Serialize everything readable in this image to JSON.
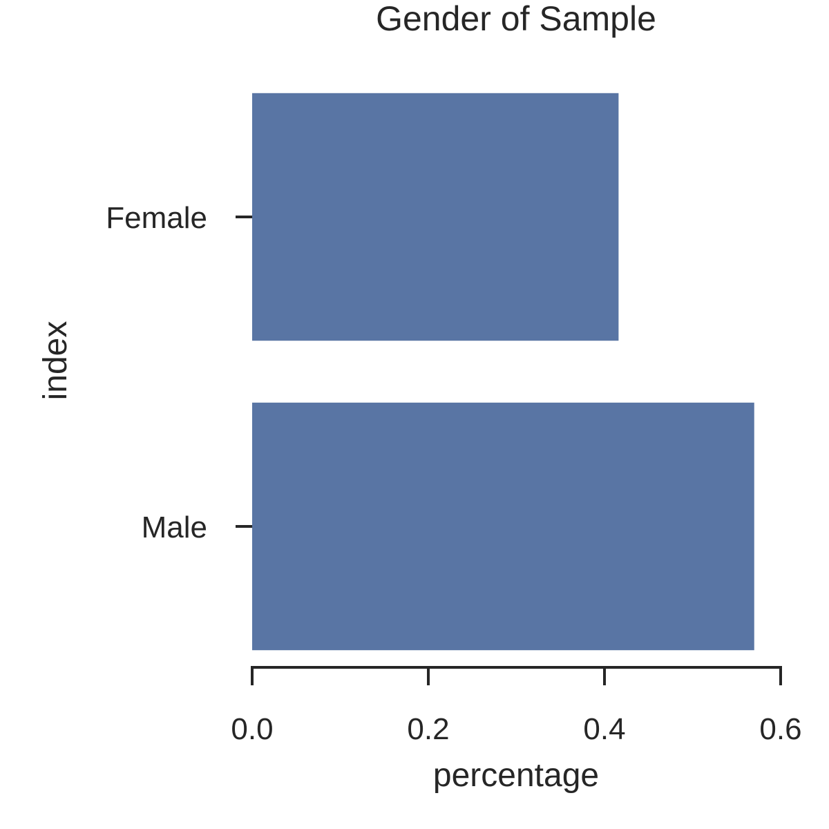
{
  "chart_data": {
    "type": "bar",
    "orientation": "horizontal",
    "title": "Gender of Sample",
    "xlabel": "percentage",
    "ylabel": "index",
    "categories": [
      "Female",
      "Male"
    ],
    "values": [
      0.416,
      0.57
    ],
    "xlim": [
      0,
      0.6
    ],
    "xticks": [
      0.0,
      0.2,
      0.4,
      0.6
    ],
    "xtick_labels": [
      "0.0",
      "0.2",
      "0.4",
      "0.6"
    ],
    "grid": false,
    "legend": "none",
    "bar_color": "#5975a4",
    "text_color": "#262626"
  }
}
